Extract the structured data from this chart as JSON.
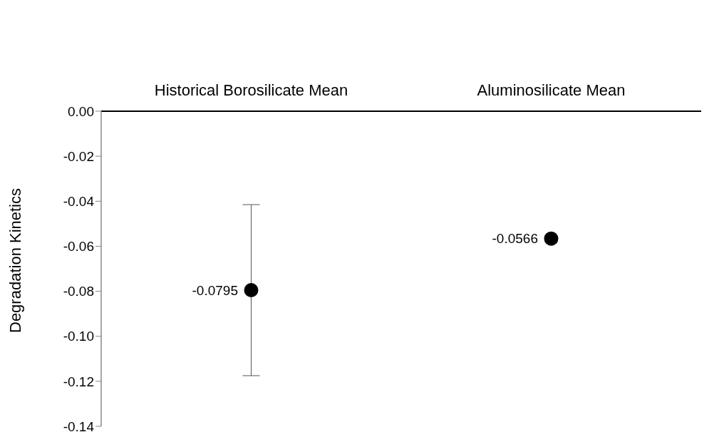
{
  "chart_data": {
    "type": "scatter",
    "ylabel": "Degradation Kinetics",
    "categories": [
      "Historical Borosilicate Mean",
      "Aluminosilicate Mean"
    ],
    "values": [
      -0.0795,
      -0.0566
    ],
    "errors": [
      0.038,
      null
    ],
    "color": "#000000",
    "marker": "circle",
    "data_labels": true,
    "ylim": [
      -0.14,
      0
    ],
    "yticks": [
      {
        "value": 0,
        "label": "0.00"
      },
      {
        "value": -0.02,
        "label": "-0.02"
      },
      {
        "value": -0.04,
        "label": "-0.04"
      },
      {
        "value": -0.06,
        "label": "-0.06"
      },
      {
        "value": -0.08,
        "label": "-0.08"
      },
      {
        "value": -0.1,
        "label": "-0.10"
      },
      {
        "value": -0.12,
        "label": "-0.12"
      },
      {
        "value": -0.14,
        "label": "-0.14"
      }
    ]
  }
}
